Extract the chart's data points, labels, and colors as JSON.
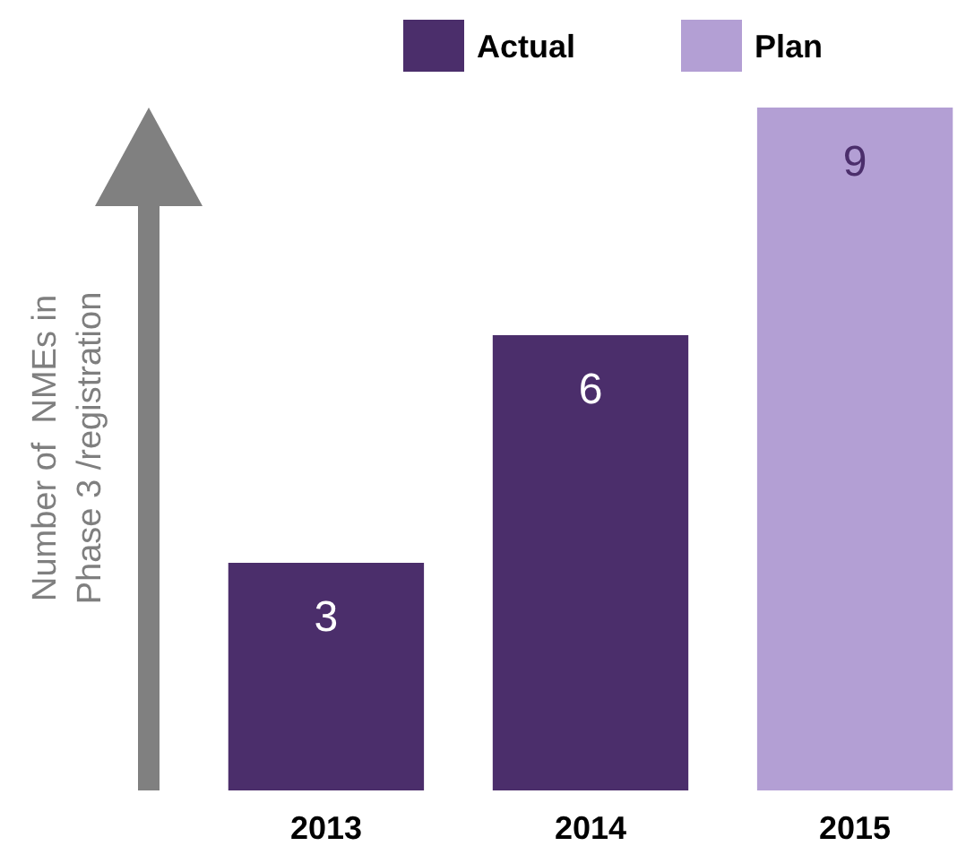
{
  "chart_data": {
    "type": "bar",
    "ylabel": "Number of  NMEs in\nPhase 3 /registration",
    "categories": [
      "2013",
      "2014",
      "2015"
    ],
    "series": [
      {
        "name": "Actual",
        "color": "#4b2e6b",
        "values": [
          3,
          6,
          null
        ]
      },
      {
        "name": "Plan",
        "color": "#b39fd4",
        "values": [
          null,
          null,
          9
        ]
      }
    ],
    "stacked": true,
    "data_labels": true,
    "legend": "top"
  }
}
